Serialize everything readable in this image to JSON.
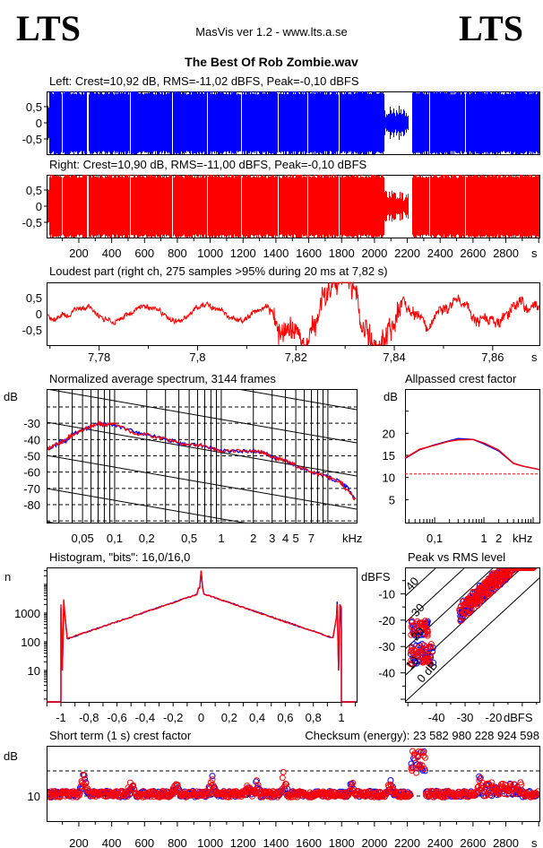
{
  "header": {
    "logo_left": "LTS",
    "logo_right": "LTS",
    "app_title": "MasVis ver 1.2 - www.lts.a.se",
    "file_title": "The Best Of Rob Zombie.wav"
  },
  "colors": {
    "left": "#0000ff",
    "right": "#ff0000",
    "grid": "#000000"
  },
  "chart_data": {
    "left": {
      "type": "area",
      "title": "Left: Crest=10,92 dB, RMS=-11,02 dBFS, Peak=-0,10 dBFS",
      "crest_db": 10.92,
      "rms_dbfs": -11.02,
      "peak_dbfs": -0.1,
      "yticks": [
        "0,5",
        "0",
        "-0,5"
      ],
      "ytick_values": [
        0.5,
        0,
        -0.5
      ],
      "ylim": [
        -1,
        1
      ],
      "xlim": [
        0,
        3000
      ],
      "gaps_s": [
        [
          95,
          100
        ],
        [
          248,
          256
        ],
        [
          510,
          516
        ],
        [
          766,
          772
        ],
        [
          978,
          984
        ],
        [
          1186,
          1192
        ],
        [
          1410,
          1416
        ],
        [
          1589,
          1595
        ],
        [
          1780,
          1786
        ],
        [
          2205,
          2225
        ],
        [
          2331,
          2337
        ],
        [
          2549,
          2555
        ]
      ],
      "quiet_s": [
        [
          2060,
          2205,
          0.35
        ]
      ]
    },
    "right": {
      "type": "area",
      "title": "Right: Crest=10,90 dB, RMS=-11,00 dBFS, Peak=-0,10 dBFS",
      "crest_db": 10.9,
      "rms_dbfs": -11.0,
      "peak_dbfs": -0.1,
      "yticks": [
        "0,5",
        "0",
        "-0,5"
      ],
      "ytick_values": [
        0.5,
        0,
        -0.5
      ],
      "ylim": [
        -1,
        1
      ],
      "xticks": [
        "200",
        "400",
        "600",
        "800",
        "1000",
        "1200",
        "1400",
        "1600",
        "1800",
        "2000",
        "2200",
        "2400",
        "2600",
        "2800"
      ],
      "xtick_values": [
        200,
        400,
        600,
        800,
        1000,
        1200,
        1400,
        1600,
        1800,
        2000,
        2200,
        2400,
        2600,
        2800
      ],
      "xlabel": "s",
      "xlim": [
        0,
        3000
      ]
    },
    "loudest": {
      "type": "line",
      "title": "Loudest part (right ch, 275 samples >95% during 20 ms at 7,82 s)",
      "yticks": [
        "0,5",
        "0",
        "-0,5"
      ],
      "ytick_values": [
        0.5,
        0,
        -0.5
      ],
      "ylim": [
        -0.95,
        0.95
      ],
      "xticks": [
        "7,78",
        "7,8",
        "7,82",
        "7,84",
        "7,86"
      ],
      "xtick_values": [
        7.78,
        7.8,
        7.82,
        7.84,
        7.86
      ],
      "xlabel": "s",
      "xlim": [
        7.7695,
        7.8695
      ]
    },
    "spectrum": {
      "type": "line",
      "title": "Normalized average spectrum, 3144 frames",
      "ylabel": "dB",
      "yticks": [
        "-30",
        "-40",
        "-50",
        "-60",
        "-70",
        "-80"
      ],
      "ytick_values": [
        -30,
        -40,
        -50,
        -60,
        -70,
        -80
      ],
      "ylim": [
        -91,
        -9
      ],
      "xticks": [
        "0,05",
        "0,1",
        "0,2",
        "0,5",
        "1",
        "2",
        "3",
        "4",
        "5",
        "7"
      ],
      "xtick_values": [
        0.05,
        0.1,
        0.2,
        0.5,
        1,
        2,
        3,
        4,
        5,
        7
      ],
      "xlabel": "kHz",
      "xlim": [
        0.023,
        18.6
      ],
      "xscale": "log",
      "series": [
        {
          "name": "left",
          "points": [
            [
              0.023,
              -47
            ],
            [
              0.03,
              -42
            ],
            [
              0.035,
              -41
            ],
            [
              0.04,
              -37
            ],
            [
              0.05,
              -34
            ],
            [
              0.06,
              -32
            ],
            [
              0.07,
              -30
            ],
            [
              0.08,
              -31
            ],
            [
              0.1,
              -31
            ],
            [
              0.15,
              -35
            ],
            [
              0.2,
              -37
            ],
            [
              0.3,
              -40
            ],
            [
              0.4,
              -42
            ],
            [
              0.5,
              -43
            ],
            [
              0.7,
              -44
            ],
            [
              1,
              -47
            ],
            [
              1.5,
              -47
            ],
            [
              2,
              -47
            ],
            [
              2.5,
              -48
            ],
            [
              3,
              -51
            ],
            [
              4,
              -53
            ],
            [
              5,
              -56
            ],
            [
              7,
              -60
            ],
            [
              10,
              -63
            ],
            [
              13,
              -66
            ],
            [
              15,
              -69
            ],
            [
              18.6,
              -78
            ]
          ]
        },
        {
          "name": "right",
          "points": [
            [
              0.023,
              -46
            ],
            [
              0.03,
              -42
            ],
            [
              0.035,
              -40
            ],
            [
              0.04,
              -37
            ],
            [
              0.05,
              -34
            ],
            [
              0.06,
              -32
            ],
            [
              0.07,
              -30
            ],
            [
              0.08,
              -31
            ],
            [
              0.1,
              -30
            ],
            [
              0.15,
              -36
            ],
            [
              0.2,
              -37
            ],
            [
              0.3,
              -40
            ],
            [
              0.4,
              -42
            ],
            [
              0.5,
              -43
            ],
            [
              0.7,
              -44
            ],
            [
              1,
              -47
            ],
            [
              1.5,
              -47
            ],
            [
              2,
              -47
            ],
            [
              2.5,
              -48
            ],
            [
              3,
              -51
            ],
            [
              4,
              -53
            ],
            [
              5,
              -56
            ],
            [
              7,
              -60
            ],
            [
              10,
              -63
            ],
            [
              13,
              -66
            ],
            [
              15,
              -71
            ],
            [
              18.6,
              -78
            ]
          ]
        }
      ]
    },
    "allpassed": {
      "type": "line",
      "title": "Allpassed crest factor",
      "ylabel": "dB",
      "yticks": [
        "20",
        "15",
        "10",
        "5"
      ],
      "ytick_values": [
        20,
        15,
        10,
        5
      ],
      "ylim": [
        -0.2,
        30
      ],
      "xticks": [
        "0,1",
        "1",
        "2"
      ],
      "xtick_values": [
        0.1,
        1,
        2
      ],
      "xlabel": "kHz",
      "xlim": [
        0.025,
        13.4
      ],
      "xscale": "log",
      "reference_db": 10.8,
      "series": [
        {
          "name": "left",
          "points": [
            [
              0.025,
              14.3
            ],
            [
              0.05,
              16.3
            ],
            [
              0.1,
              17.4
            ],
            [
              0.2,
              18.3
            ],
            [
              0.3,
              18.8
            ],
            [
              0.6,
              18.6
            ],
            [
              1,
              17.6
            ],
            [
              2,
              16.0
            ],
            [
              4,
              13.2
            ],
            [
              6,
              12.6
            ],
            [
              13.4,
              11.8
            ]
          ]
        },
        {
          "name": "right",
          "points": [
            [
              0.025,
              14.4
            ],
            [
              0.05,
              16.4
            ],
            [
              0.1,
              17.3
            ],
            [
              0.2,
              18.2
            ],
            [
              0.3,
              18.5
            ],
            [
              0.6,
              18.6
            ],
            [
              1,
              17.8
            ],
            [
              2,
              16.2
            ],
            [
              4,
              13.2
            ],
            [
              6,
              12.6
            ],
            [
              13.4,
              11.8
            ]
          ]
        }
      ]
    },
    "histogram": {
      "type": "line",
      "title": "Histogram, \"bits\": 16,0/16,0",
      "ylabel": "n",
      "yticks": [
        "1000",
        "100",
        "10"
      ],
      "ytick_values": [
        1000,
        100,
        10
      ],
      "yscale": "log",
      "ylim": [
        0.8,
        39000
      ],
      "xticks": [
        "-1",
        "-0,8",
        "-0,6",
        "-0,4",
        "-0,2",
        "0",
        "0,2",
        "0,4",
        "0,6",
        "0,8",
        "1"
      ],
      "xtick_values": [
        -1,
        -0.8,
        -0.6,
        -0.4,
        -0.2,
        0,
        0.2,
        0.4,
        0.6,
        0.8,
        1
      ],
      "xlim": [
        -1.1,
        1.1
      ],
      "series_profile": {
        "edge_count": 130,
        "center_count": 5000,
        "center_peak": 30000,
        "clip_spikes": 2500
      }
    },
    "peak_vs_rms": {
      "type": "scatter",
      "title": "Peak vs RMS level",
      "ylabel": "dBFS",
      "xlabel": "dBFS",
      "yticks": [
        "-10",
        "-20",
        "-30",
        "-40"
      ],
      "ytick_values": [
        -10,
        -20,
        -30,
        -40
      ],
      "ylim": [
        -51,
        0
      ],
      "xticks": [
        "-40",
        "-30",
        "-20"
      ],
      "xtick_values": [
        -40,
        -30,
        -20
      ],
      "xlim": [
        -51,
        -4
      ],
      "crest_lines": [
        "40",
        "30",
        "20",
        "10",
        "0 dB"
      ],
      "crest_line_values": [
        40,
        30,
        20,
        10,
        0
      ]
    },
    "short_term_crest": {
      "type": "scatter",
      "title": "Short term (1 s) crest factor",
      "checksum": "Checksum (energy):  23 582 980 228 924 598",
      "ylabel": "dB",
      "yticks": [
        "10"
      ],
      "ytick_values": [
        10
      ],
      "ylim": [
        0,
        30
      ],
      "reference_db": 20,
      "xticks": [
        "200",
        "400",
        "600",
        "800",
        "1000",
        "1200",
        "1400",
        "1600",
        "1800",
        "2000",
        "2200",
        "2400",
        "2600",
        "2800"
      ],
      "xtick_values": [
        200,
        400,
        600,
        800,
        1000,
        1200,
        1400,
        1600,
        1800,
        2000,
        2200,
        2400,
        2600,
        2800
      ],
      "xlabel": "s",
      "xlim": [
        0,
        3000
      ]
    }
  }
}
